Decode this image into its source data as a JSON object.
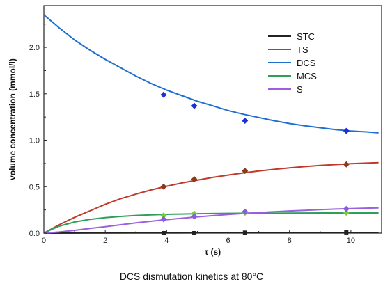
{
  "chart_data": {
    "type": "line",
    "title": "",
    "caption": "DCS dismutation kinetics at 80°C",
    "xlabel": "τ (s)",
    "ylabel": "volume concentration (mmol/l)",
    "xlim": [
      0,
      11
    ],
    "ylim": [
      0,
      2.45
    ],
    "xticks": [
      0,
      2,
      4,
      6,
      8,
      10
    ],
    "xtick_labels": [
      "0",
      "2",
      "4",
      "6",
      "8",
      "10"
    ],
    "yticks": [
      0,
      0.5,
      1.0,
      1.5,
      2.0
    ],
    "ytick_labels": [
      "0.0",
      "0.5",
      "1.0",
      "1.5",
      "2.0"
    ],
    "grid": false,
    "legend_position": "top-right",
    "series": [
      {
        "name": "STC",
        "color": "#222222",
        "marker": "square",
        "points": [
          [
            3.9,
            0.0
          ],
          [
            4.9,
            0.0
          ],
          [
            6.55,
            0.005
          ],
          [
            9.85,
            0.008
          ]
        ],
        "curve": [
          [
            0,
            0
          ],
          [
            1,
            0.001
          ],
          [
            2,
            0.002
          ],
          [
            3,
            0.003
          ],
          [
            4,
            0.003
          ],
          [
            5,
            0.004
          ],
          [
            6,
            0.004
          ],
          [
            7,
            0.005
          ],
          [
            8,
            0.005
          ],
          [
            9,
            0.005
          ],
          [
            10,
            0.006
          ],
          [
            10.9,
            0.006
          ]
        ]
      },
      {
        "name": "TS",
        "color": "#c0392b",
        "marker": "diamond",
        "marker_color": "#8b3a1a",
        "points": [
          [
            3.9,
            0.5
          ],
          [
            4.9,
            0.58
          ],
          [
            6.55,
            0.67
          ],
          [
            9.85,
            0.74
          ]
        ],
        "curve": [
          [
            0,
            0
          ],
          [
            0.5,
            0.09
          ],
          [
            1,
            0.17
          ],
          [
            1.5,
            0.24
          ],
          [
            2,
            0.31
          ],
          [
            2.5,
            0.37
          ],
          [
            3,
            0.42
          ],
          [
            3.5,
            0.465
          ],
          [
            4,
            0.505
          ],
          [
            4.5,
            0.54
          ],
          [
            5,
            0.57
          ],
          [
            5.5,
            0.6
          ],
          [
            6,
            0.625
          ],
          [
            6.5,
            0.648
          ],
          [
            7,
            0.668
          ],
          [
            7.5,
            0.686
          ],
          [
            8,
            0.702
          ],
          [
            8.5,
            0.716
          ],
          [
            9,
            0.728
          ],
          [
            9.5,
            0.738
          ],
          [
            10,
            0.747
          ],
          [
            10.5,
            0.754
          ],
          [
            10.9,
            0.759
          ]
        ]
      },
      {
        "name": "DCS",
        "color": "#1f6fd1",
        "marker": "diamond",
        "marker_color": "#1d2fd6",
        "points": [
          [
            3.9,
            1.49
          ],
          [
            4.9,
            1.37
          ],
          [
            6.55,
            1.21
          ],
          [
            9.85,
            1.1
          ]
        ],
        "curve": [
          [
            0,
            2.35
          ],
          [
            0.5,
            2.21
          ],
          [
            1,
            2.08
          ],
          [
            1.5,
            1.97
          ],
          [
            2,
            1.87
          ],
          [
            2.5,
            1.78
          ],
          [
            3,
            1.69
          ],
          [
            3.5,
            1.61
          ],
          [
            4,
            1.54
          ],
          [
            4.5,
            1.48
          ],
          [
            5,
            1.42
          ],
          [
            5.5,
            1.37
          ],
          [
            6,
            1.32
          ],
          [
            6.5,
            1.28
          ],
          [
            7,
            1.245
          ],
          [
            7.5,
            1.21
          ],
          [
            8,
            1.18
          ],
          [
            8.5,
            1.155
          ],
          [
            9,
            1.135
          ],
          [
            9.5,
            1.115
          ],
          [
            10,
            1.1
          ],
          [
            10.5,
            1.09
          ],
          [
            10.9,
            1.08
          ]
        ]
      },
      {
        "name": "MCS",
        "color": "#2e9e5b",
        "marker": "diamond",
        "marker_color": "#7acb3c",
        "points": [
          [
            3.9,
            0.19
          ],
          [
            4.9,
            0.21
          ],
          [
            6.55,
            0.22
          ],
          [
            9.85,
            0.22
          ]
        ],
        "curve": [
          [
            0,
            0
          ],
          [
            0.25,
            0.04
          ],
          [
            0.5,
            0.075
          ],
          [
            1,
            0.12
          ],
          [
            1.5,
            0.148
          ],
          [
            2,
            0.167
          ],
          [
            2.5,
            0.18
          ],
          [
            3,
            0.19
          ],
          [
            3.5,
            0.197
          ],
          [
            4,
            0.202
          ],
          [
            5,
            0.209
          ],
          [
            6,
            0.213
          ],
          [
            7,
            0.215
          ],
          [
            8,
            0.216
          ],
          [
            9,
            0.217
          ],
          [
            10,
            0.217
          ],
          [
            10.9,
            0.217
          ]
        ]
      },
      {
        "name": "S",
        "color": "#9b5fe0",
        "marker": "diamond",
        "marker_color": "#8a5be0",
        "points": [
          [
            3.9,
            0.15
          ],
          [
            4.9,
            0.18
          ],
          [
            6.55,
            0.23
          ],
          [
            9.85,
            0.26
          ]
        ],
        "curve": [
          [
            0,
            0
          ],
          [
            0.5,
            0.012
          ],
          [
            1,
            0.03
          ],
          [
            1.5,
            0.05
          ],
          [
            2,
            0.07
          ],
          [
            2.5,
            0.09
          ],
          [
            3,
            0.11
          ],
          [
            3.5,
            0.128
          ],
          [
            4,
            0.145
          ],
          [
            4.5,
            0.16
          ],
          [
            5,
            0.175
          ],
          [
            5.5,
            0.188
          ],
          [
            6,
            0.2
          ],
          [
            6.5,
            0.212
          ],
          [
            7,
            0.222
          ],
          [
            7.5,
            0.231
          ],
          [
            8,
            0.239
          ],
          [
            8.5,
            0.246
          ],
          [
            9,
            0.253
          ],
          [
            9.5,
            0.259
          ],
          [
            10,
            0.264
          ],
          [
            10.5,
            0.269
          ],
          [
            10.9,
            0.272
          ]
        ]
      }
    ]
  }
}
